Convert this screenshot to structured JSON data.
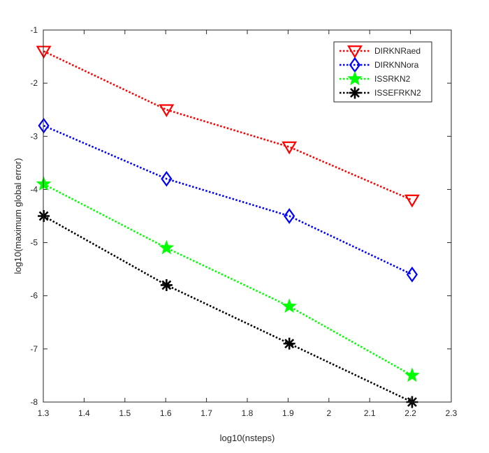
{
  "chart_data": {
    "type": "line",
    "title": "",
    "xlabel": "log10(nsteps)",
    "ylabel": "log10(maximum global error)",
    "xlim": [
      1.3,
      2.3
    ],
    "ylim": [
      -8,
      -1
    ],
    "xticks": [
      1.3,
      1.4,
      1.5,
      1.6,
      1.7,
      1.8,
      1.9,
      2,
      2.1,
      2.2,
      2.3
    ],
    "xtick_labels": [
      "1.3",
      "1.4",
      "1.5",
      "1.6",
      "1.7",
      "1.8",
      "1.9",
      "2",
      "2.1",
      "2.2",
      "2.3"
    ],
    "yticks": [
      -1,
      -2,
      -3,
      -4,
      -5,
      -6,
      -7,
      -8
    ],
    "ytick_labels": [
      "-1",
      "-2",
      "-3",
      "-4",
      "-5",
      "-6",
      "-7",
      "-8"
    ],
    "grid": false,
    "legend_position": "top-right",
    "series": [
      {
        "name": "DIRKNRaed",
        "color": "#ff0000",
        "marker": "triangle-down",
        "x": [
          1.301,
          1.602,
          1.903,
          2.204
        ],
        "y": [
          -1.4,
          -2.5,
          -3.2,
          -4.2
        ]
      },
      {
        "name": "DIRKNNora",
        "color": "#0000ff",
        "marker": "diamond",
        "x": [
          1.301,
          1.602,
          1.903,
          2.204
        ],
        "y": [
          -2.8,
          -3.8,
          -4.5,
          -5.6
        ]
      },
      {
        "name": "ISSRKN2",
        "color": "#00ff00",
        "marker": "star",
        "x": [
          1.301,
          1.602,
          1.903,
          2.204
        ],
        "y": [
          -3.9,
          -5.1,
          -6.2,
          -7.5
        ]
      },
      {
        "name": "ISSEFRKN2",
        "color": "#000000",
        "marker": "asterisk",
        "x": [
          1.301,
          1.602,
          1.903,
          2.204
        ],
        "y": [
          -4.5,
          -5.8,
          -6.9,
          -8.0
        ]
      }
    ]
  }
}
